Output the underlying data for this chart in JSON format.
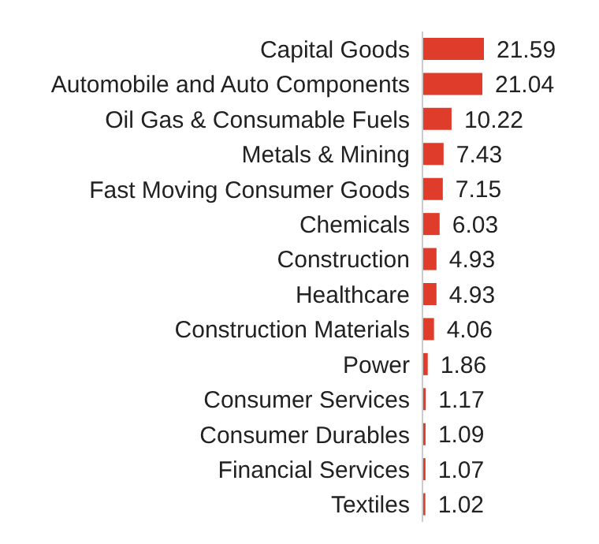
{
  "chart_data": {
    "type": "bar",
    "orientation": "horizontal",
    "data_labels": true,
    "categories": [
      "Capital Goods",
      "Automobile and Auto Components",
      "Oil Gas & Consumable Fuels",
      "Metals & Mining",
      "Fast Moving Consumer Goods",
      "Chemicals",
      "Construction",
      "Healthcare",
      "Construction Materials",
      "Power",
      "Consumer Services",
      "Consumer Durables",
      "Financial Services",
      "Textiles"
    ],
    "values": [
      21.59,
      21.04,
      10.22,
      7.43,
      7.15,
      6.03,
      4.93,
      4.93,
      4.06,
      1.86,
      1.17,
      1.09,
      1.07,
      1.02
    ],
    "color": "#e03c2c",
    "grid": false,
    "legend": false
  }
}
